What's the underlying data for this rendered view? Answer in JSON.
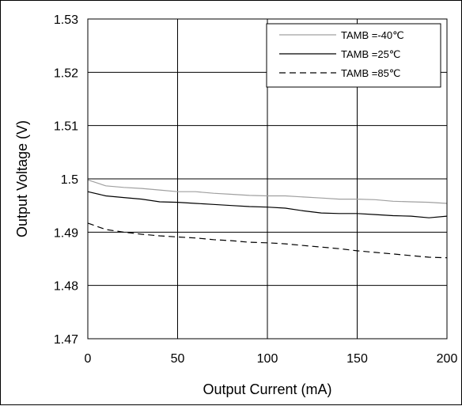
{
  "chart_data": {
    "type": "line",
    "title": "",
    "xlabel": "Output Current (mA)",
    "ylabel": "Output Voltage (V)",
    "xlim": [
      0,
      200
    ],
    "ylim": [
      1.47,
      1.53
    ],
    "xticks": [
      0,
      50,
      100,
      150,
      200
    ],
    "xtick_labels": [
      "0",
      "50",
      "100",
      "150",
      "200"
    ],
    "yticks": [
      1.47,
      1.48,
      1.49,
      1.5,
      1.51,
      1.52,
      1.53
    ],
    "ytick_labels": [
      "1.47",
      "1.48",
      "1.49",
      "1.5",
      "1.51",
      "1.52",
      "1.53"
    ],
    "grid": true,
    "legend_position": "top-right",
    "series": [
      {
        "name": "TAMB =-40℃",
        "color": "#a0a0a0",
        "dash": "solid",
        "x": [
          0,
          10,
          20,
          30,
          40,
          50,
          60,
          70,
          80,
          90,
          100,
          110,
          120,
          130,
          140,
          150,
          160,
          170,
          180,
          190,
          200
        ],
        "y": [
          1.4998,
          1.4987,
          1.4984,
          1.4982,
          1.4979,
          1.4976,
          1.4976,
          1.4973,
          1.4971,
          1.4969,
          1.4968,
          1.4968,
          1.4966,
          1.4964,
          1.4962,
          1.4962,
          1.4961,
          1.4958,
          1.4957,
          1.4956,
          1.4954
        ]
      },
      {
        "name": "TAMB =25℃",
        "color": "#000000",
        "dash": "solid",
        "x": [
          0,
          10,
          20,
          30,
          40,
          50,
          60,
          70,
          80,
          90,
          100,
          110,
          120,
          130,
          140,
          150,
          160,
          170,
          180,
          190,
          200
        ],
        "y": [
          1.4976,
          1.4968,
          1.4965,
          1.4962,
          1.4957,
          1.4956,
          1.4954,
          1.4952,
          1.495,
          1.4948,
          1.4947,
          1.4945,
          1.494,
          1.4936,
          1.4935,
          1.4935,
          1.4933,
          1.4931,
          1.493,
          1.4927,
          1.493
        ]
      },
      {
        "name": "TAMB =85℃",
        "color": "#000000",
        "dash": "dashed",
        "x": [
          0,
          10,
          20,
          30,
          40,
          50,
          60,
          70,
          80,
          90,
          100,
          110,
          120,
          130,
          140,
          150,
          160,
          170,
          180,
          190,
          200
        ],
        "y": [
          1.4917,
          1.4905,
          1.49,
          1.4896,
          1.4893,
          1.4891,
          1.4889,
          1.4886,
          1.4884,
          1.4881,
          1.488,
          1.4878,
          1.4875,
          1.4872,
          1.4869,
          1.4865,
          1.4862,
          1.4859,
          1.4856,
          1.4853,
          1.4852
        ]
      }
    ]
  }
}
